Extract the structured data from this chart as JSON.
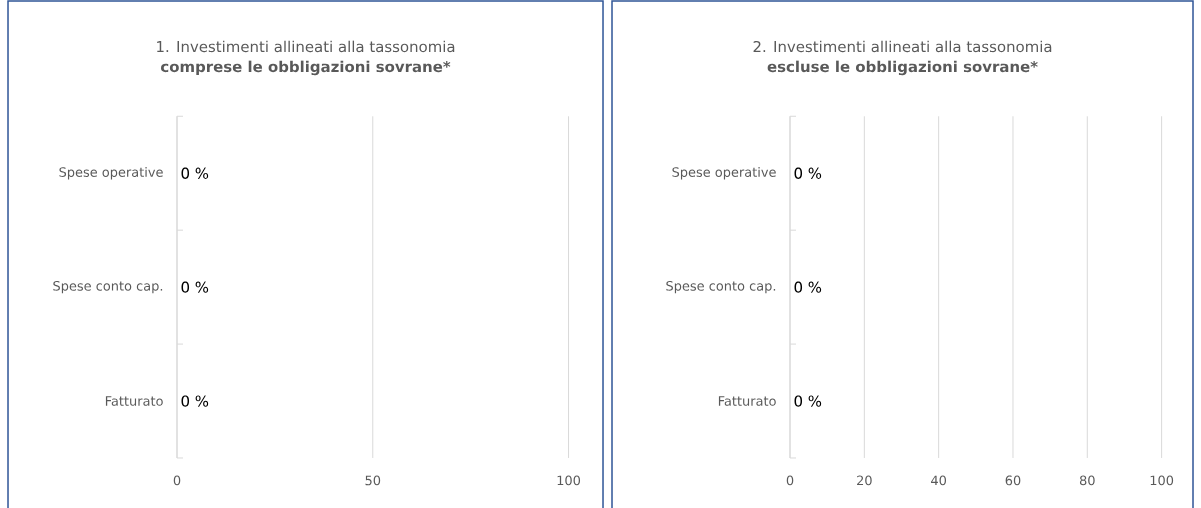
{
  "chart_data": [
    {
      "type": "bar",
      "orientation": "horizontal",
      "title": "1. Investimenti allineati alla tassonomia",
      "subtitle": "comprese le obbligazioni sovrane*",
      "categories": [
        "Spese operative",
        "Spese conto cap.",
        "Fatturato"
      ],
      "values": [
        0,
        0,
        0
      ],
      "value_labels": [
        "0 %",
        "0 %",
        "0 %"
      ],
      "xlim": [
        0,
        100
      ],
      "xticks": [
        0,
        50,
        100
      ],
      "grid": "x"
    },
    {
      "type": "bar",
      "orientation": "horizontal",
      "title": "2. Investimenti allineati alla tassonomia",
      "subtitle": "escluse le obbligazioni sovrane*",
      "categories": [
        "Spese operative",
        "Spese conto cap.",
        "Fatturato"
      ],
      "values": [
        0,
        0,
        0
      ],
      "value_labels": [
        "0 %",
        "0 %",
        "0 %"
      ],
      "xlim": [
        0,
        100
      ],
      "xticks": [
        0,
        20,
        40,
        60,
        80,
        100
      ],
      "grid": "x"
    }
  ]
}
